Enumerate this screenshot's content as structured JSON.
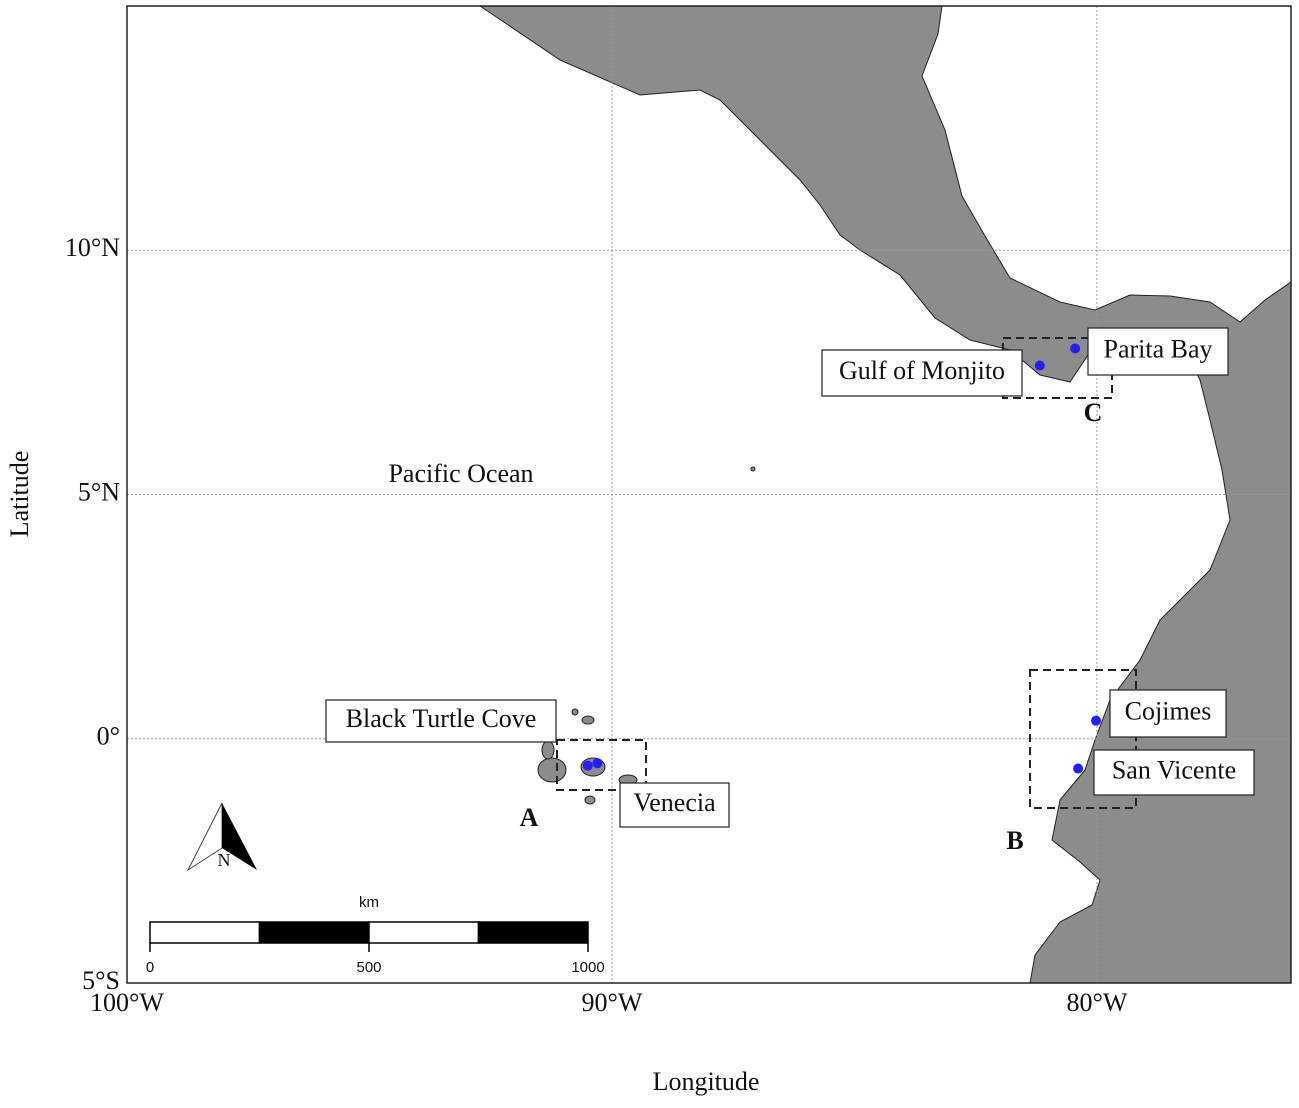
{
  "map": {
    "x_label": "Longitude",
    "y_label": "Latitude",
    "xlim": [
      -100,
      -76
    ],
    "ylim": [
      -5,
      15
    ],
    "xticks": [
      {
        "value": -100,
        "label": "100°W"
      },
      {
        "value": -90,
        "label": "90°W"
      },
      {
        "value": -80,
        "label": "80°W"
      }
    ],
    "yticks": [
      {
        "value": -5,
        "label": "5°S"
      },
      {
        "value": 0,
        "label": "0°"
      },
      {
        "value": 5,
        "label": "5°N"
      },
      {
        "value": 10,
        "label": "10°N"
      }
    ],
    "grid": true,
    "ocean_label": "Pacific Ocean",
    "north_label": "N",
    "site_color": "#1f1fff",
    "sites": [
      {
        "name": "Black Turtle Cove",
        "lon": -90.5,
        "lat": -0.55
      },
      {
        "name": "Venecia",
        "lon": -90.3,
        "lat": -0.5
      },
      {
        "name": "Gulf of Monjito",
        "lon": -81.18,
        "lat": 7.64
      },
      {
        "name": "Parita Bay",
        "lon": -80.45,
        "lat": 7.99
      },
      {
        "name": "Cojimes",
        "lon": -80.02,
        "lat": 0.37
      },
      {
        "name": "San Vicente",
        "lon": -80.39,
        "lat": -0.61
      }
    ],
    "regions": [
      "A",
      "B",
      "C"
    ],
    "scale_bar": {
      "unit": "km",
      "ticks": [
        0,
        500,
        1000
      ]
    }
  }
}
